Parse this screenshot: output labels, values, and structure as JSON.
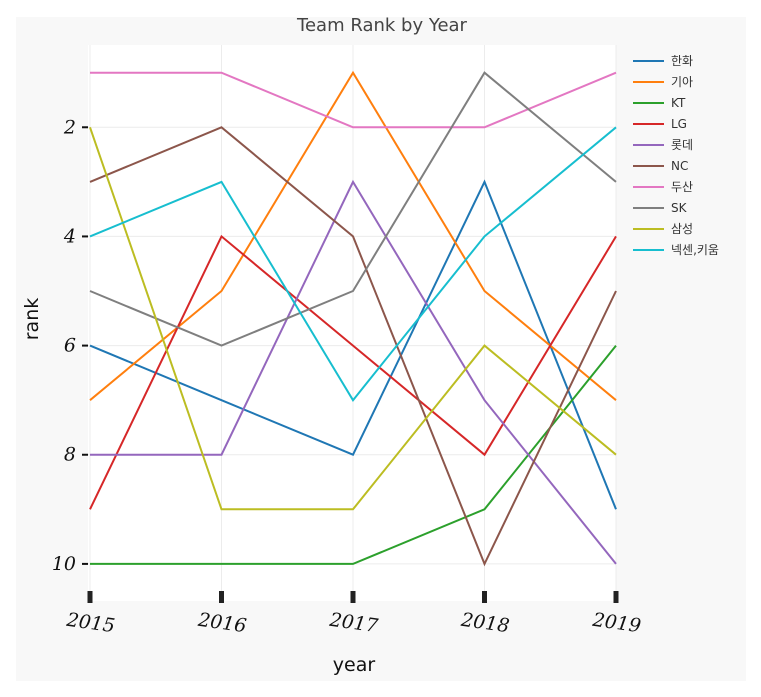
{
  "chart_data": {
    "type": "line",
    "title": "Team Rank by Year",
    "xlabel": "year",
    "ylabel": "rank",
    "x": [
      2015,
      2016,
      2017,
      2018,
      2019
    ],
    "y_ticks": [
      2,
      4,
      6,
      8,
      10
    ],
    "ylim": [
      0.55,
      10.6
    ],
    "y_reversed": true,
    "grid": true,
    "legend_position": "top-right",
    "series": [
      {
        "name": "한화",
        "color": "#1f77b4",
        "values": [
          6,
          7,
          8,
          3,
          9
        ]
      },
      {
        "name": "기아",
        "color": "#ff7f0e",
        "values": [
          7,
          5,
          1,
          5,
          7
        ]
      },
      {
        "name": "KT",
        "color": "#2ca02c",
        "values": [
          10,
          10,
          10,
          9,
          6
        ]
      },
      {
        "name": "LG",
        "color": "#d62728",
        "values": [
          9,
          4,
          6,
          8,
          4
        ]
      },
      {
        "name": "롯데",
        "color": "#9467bd",
        "values": [
          8,
          8,
          3,
          7,
          10
        ]
      },
      {
        "name": "NC",
        "color": "#8c564b",
        "values": [
          3,
          2,
          4,
          10,
          5
        ]
      },
      {
        "name": "두산",
        "color": "#e377c2",
        "values": [
          1,
          1,
          2,
          2,
          1
        ]
      },
      {
        "name": "SK",
        "color": "#7f7f7f",
        "values": [
          5,
          6,
          5,
          1,
          3
        ]
      },
      {
        "name": "삼성",
        "color": "#bcbd22",
        "values": [
          2,
          9,
          9,
          6,
          8
        ]
      },
      {
        "name": "넥센,키움",
        "color": "#17becf",
        "values": [
          4,
          3,
          7,
          4,
          2
        ]
      }
    ]
  }
}
